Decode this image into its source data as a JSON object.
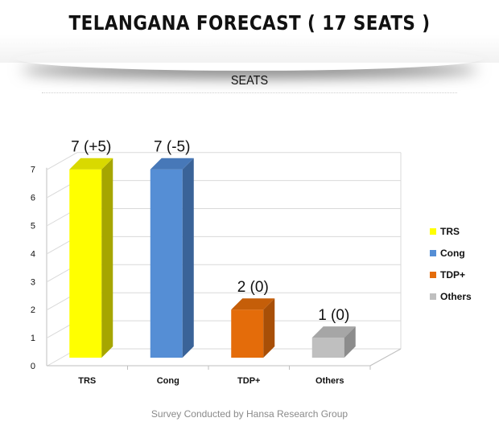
{
  "header": {
    "title": "TELANGANA FORECAST ( 17 SEATS )"
  },
  "footer": {
    "note": "Survey Conducted by Hansa Research Group"
  },
  "chart_data": {
    "type": "bar",
    "title": "SEATS",
    "categories": [
      "TRS",
      "Cong",
      "TDP+",
      "Others"
    ],
    "values": [
      7,
      7,
      2,
      1
    ],
    "data_labels": [
      "7 (+5)",
      "7 (-5)",
      "2 (0)",
      "1 (0)"
    ],
    "colors": [
      "#ffff00",
      "#558ed5",
      "#e46c0a",
      "#bfbfbf"
    ],
    "side_colors": [
      "#a6a600",
      "#3a6398",
      "#a84f07",
      "#8c8c8c"
    ],
    "top_colors": [
      "#d9d900",
      "#4778b8",
      "#c55e09",
      "#a6a6a6"
    ],
    "y_ticks": [
      "0",
      "1",
      "2",
      "3",
      "4",
      "5",
      "6",
      "7"
    ],
    "ylim": [
      0,
      7
    ],
    "grid": true,
    "legend_position": "right",
    "legend": [
      "TRS",
      "Cong",
      "TDP+",
      "Others"
    ]
  }
}
